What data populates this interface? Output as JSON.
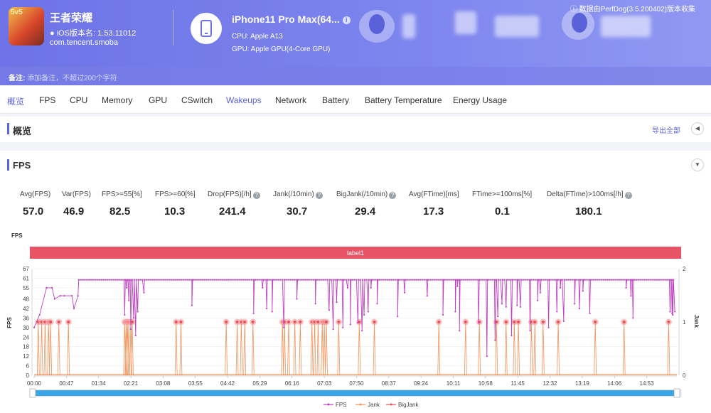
{
  "header": {
    "app_name": "王者荣耀",
    "app_version": "iOS版本名: 1.53.11012",
    "app_package": "com.tencent.smoba",
    "device_name": "iPhone11 Pro Max(64...",
    "cpu": "CPU: Apple A13",
    "gpu": "GPU: Apple GPU(4-Core GPU)",
    "collected_by": "数据由PerfDog(3.5.200402)版本收集",
    "remark_label": "备注:",
    "remark_placeholder": "添加备注，不超过200个字符"
  },
  "tabs": [
    "概览",
    "FPS",
    "CPU",
    "Memory",
    "GPU",
    "CSwitch",
    "Wakeups",
    "Network",
    "Battery",
    "Battery Temperature",
    "Energy Usage"
  ],
  "overview": {
    "title": "概览",
    "export_label": "导出全部"
  },
  "fps_section": {
    "title": "FPS"
  },
  "stats": [
    {
      "label": "Avg(FPS)",
      "value": "57.0",
      "help": false
    },
    {
      "label": "Var(FPS)",
      "value": "46.9",
      "help": false
    },
    {
      "label": "FPS>=55[%]",
      "value": "82.5",
      "help": false
    },
    {
      "label": "FPS>=60[%]",
      "value": "10.3",
      "help": false
    },
    {
      "label": "Drop(FPS)[/h]",
      "value": "241.4",
      "help": true
    },
    {
      "label": "Jank(/10min)",
      "value": "30.7",
      "help": true
    },
    {
      "label": "BigJank(/10min)",
      "value": "29.4",
      "help": true
    },
    {
      "label": "Avg(FTime)[ms]",
      "value": "17.3",
      "help": false
    },
    {
      "label": "FTime>=100ms[%]",
      "value": "0.1",
      "help": false
    },
    {
      "label": "Delta(FTime)>100ms[/h]",
      "value": "180.1",
      "help": true
    }
  ],
  "chart_data": {
    "type": "line",
    "title": "FPS",
    "band_label": "label1",
    "ylabel_left": "FPS",
    "ylabel_right": "Jank",
    "y_left_ticks": [
      0,
      6,
      12,
      18,
      24,
      30,
      36,
      42,
      48,
      55,
      61,
      67
    ],
    "y_right_ticks": [
      0,
      1,
      2
    ],
    "ylim_left": [
      0,
      67
    ],
    "ylim_right": [
      0,
      2
    ],
    "x_ticks": [
      "00:00",
      "00:47",
      "01:34",
      "02:21",
      "03:08",
      "03:55",
      "04:42",
      "05:29",
      "06:16",
      "07:03",
      "07:50",
      "08:37",
      "09:24",
      "10:11",
      "10:58",
      "11:45",
      "12:32",
      "13:19",
      "14:06",
      "14:53"
    ],
    "duration_s": 937,
    "series": [
      {
        "name": "FPS",
        "color": "#c03fc0",
        "baseline": 60,
        "segments": [
          [
            0,
            30
          ],
          [
            8,
            38
          ],
          [
            18,
            55
          ],
          [
            26,
            55
          ],
          [
            30,
            48
          ],
          [
            38,
            50
          ],
          [
            44,
            50
          ],
          [
            55,
            50
          ],
          [
            58,
            42
          ],
          [
            64,
            50
          ],
          [
            65,
            60
          ]
        ],
        "dips": [
          [
            132,
            38
          ],
          [
            135,
            55
          ],
          [
            138,
            47
          ],
          [
            141,
            29
          ],
          [
            145,
            36
          ],
          [
            148,
            25
          ],
          [
            151,
            40
          ],
          [
            160,
            52
          ],
          [
            230,
            44
          ],
          [
            320,
            39
          ],
          [
            333,
            55
          ],
          [
            339,
            42
          ],
          [
            347,
            40
          ],
          [
            364,
            30
          ],
          [
            383,
            48
          ],
          [
            410,
            45
          ],
          [
            430,
            41
          ],
          [
            436,
            29
          ],
          [
            441,
            46
          ],
          [
            450,
            30
          ],
          [
            457,
            55
          ],
          [
            461,
            32
          ],
          [
            472,
            33
          ],
          [
            478,
            28
          ],
          [
            481,
            38
          ],
          [
            487,
            40
          ],
          [
            491,
            55
          ],
          [
            500,
            45
          ],
          [
            530,
            37
          ],
          [
            540,
            52
          ],
          [
            573,
            50
          ],
          [
            596,
            38
          ],
          [
            614,
            40
          ],
          [
            617,
            56
          ],
          [
            620,
            28
          ],
          [
            648,
            33
          ],
          [
            660,
            12
          ],
          [
            672,
            22
          ],
          [
            676,
            37
          ],
          [
            682,
            45
          ],
          [
            688,
            43
          ],
          [
            696,
            25
          ],
          [
            704,
            44
          ],
          [
            709,
            43
          ],
          [
            723,
            28
          ],
          [
            734,
            47
          ],
          [
            738,
            52
          ],
          [
            750,
            30
          ],
          [
            762,
            40
          ],
          [
            767,
            55
          ],
          [
            772,
            34
          ],
          [
            788,
            45
          ],
          [
            795,
            42
          ],
          [
            800,
            53
          ],
          [
            810,
            39
          ],
          [
            863,
            55
          ],
          [
            870,
            50
          ],
          [
            873,
            36
          ],
          [
            927,
            40
          ],
          [
            930,
            39
          ]
        ]
      },
      {
        "name": "Jank",
        "color": "#f0935a",
        "events": [
          6,
          11,
          16,
          21,
          24,
          36,
          50,
          132,
          134,
          136,
          138,
          141,
          143,
          207,
          214,
          280,
          296,
          302,
          307,
          319,
          362,
          365,
          371,
          380,
          388,
          405,
          409,
          414,
          420,
          423,
          426,
          444,
          474,
          496,
          590,
          629,
          649,
          674,
          688,
          700,
          706,
          725,
          730,
          742,
          764,
          818,
          860,
          925
        ]
      },
      {
        "name": "BigJank",
        "color": "#e8505c"
      }
    ],
    "legend": "bottom"
  }
}
